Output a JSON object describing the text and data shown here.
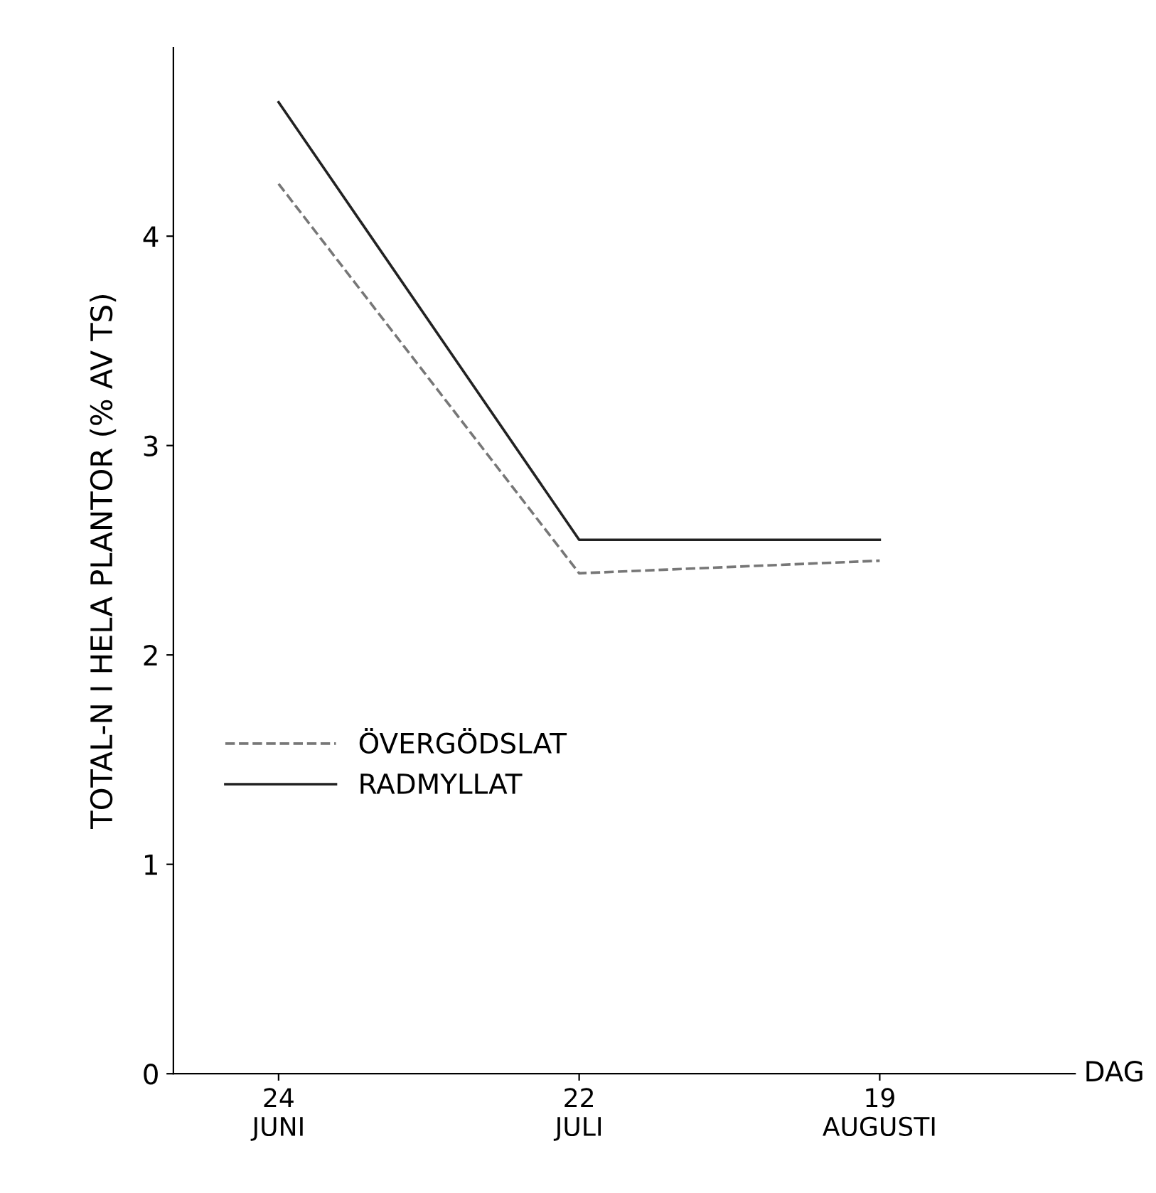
{
  "chart_data": {
    "type": "line",
    "xlabel": "DAG",
    "ylabel": "TOTAL-N I HELA PLANTOR (% AV TS)",
    "categories": [
      "24\nJUNI",
      "22\nJULI",
      "19\nAUGUSTI"
    ],
    "series": [
      {
        "name": "ÖVERGÖDSLAT",
        "color": "#777777",
        "values": [
          4.25,
          2.39,
          2.45
        ],
        "line_style": "dashed"
      },
      {
        "name": "RADMYLLAT",
        "color": "#222222",
        "values": [
          4.64,
          2.55,
          2.55
        ],
        "line_style": "solid"
      }
    ],
    "ylim": [
      0,
      4.9
    ],
    "yticks": [
      0,
      1,
      2,
      3,
      4
    ],
    "grid": false,
    "legend": "center left",
    "marker": "none"
  }
}
